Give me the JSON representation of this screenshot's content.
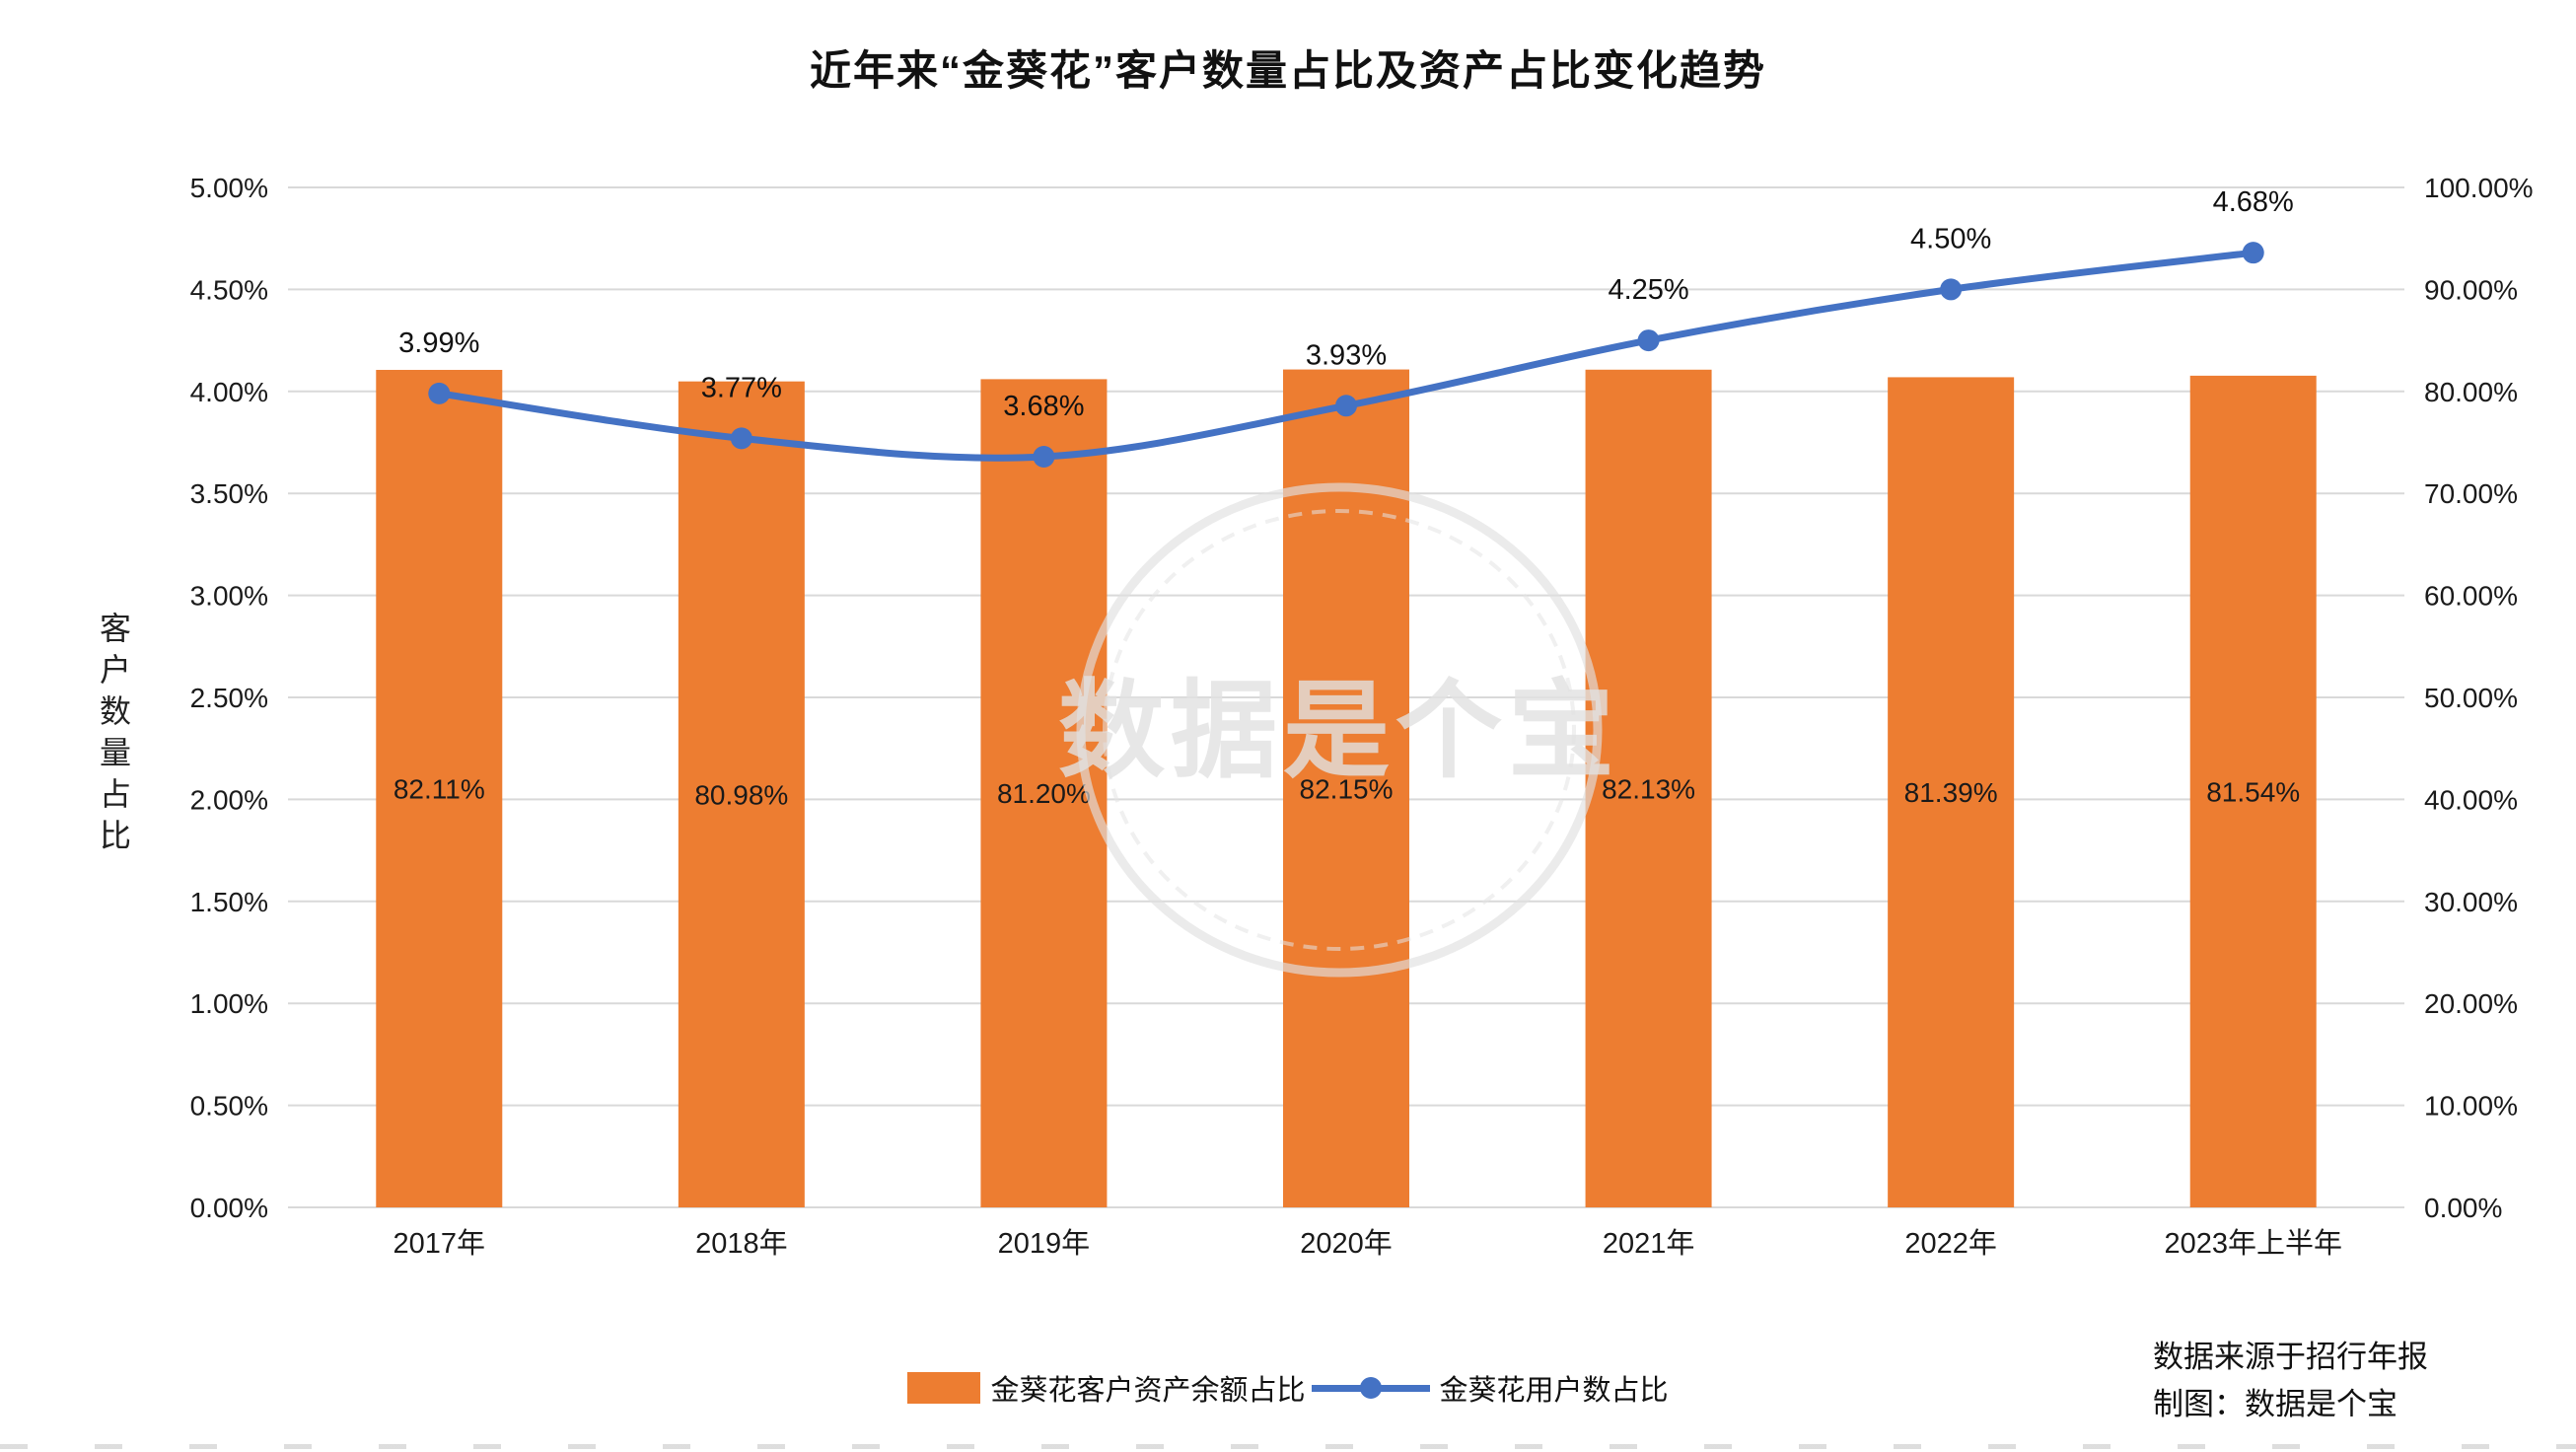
{
  "chart_data": {
    "type": "bar+line",
    "title": "近年来“金葵花”客户数量占比及资产占比变化趋势",
    "categories": [
      "2017年",
      "2018年",
      "2019年",
      "2020年",
      "2021年",
      "2022年",
      "2023年上半年"
    ],
    "series": [
      {
        "name": "金葵花客户资产余额占比",
        "type": "bar",
        "axis": "right",
        "color": "#ED7D31",
        "values": [
          82.11,
          80.98,
          81.2,
          82.15,
          82.13,
          81.39,
          81.54
        ],
        "labels": [
          "82.11%",
          "80.98%",
          "81.20%",
          "82.15%",
          "82.13%",
          "81.39%",
          "81.54%"
        ]
      },
      {
        "name": "金葵花用户数占比",
        "type": "line",
        "axis": "left",
        "color": "#4472C4",
        "values": [
          3.99,
          3.77,
          3.68,
          3.93,
          4.25,
          4.5,
          4.68
        ],
        "labels": [
          "3.99%",
          "3.77%",
          "3.68%",
          "3.93%",
          "4.25%",
          "4.50%",
          "4.68%"
        ]
      }
    ],
    "left_axis": {
      "title": "客户数量占比",
      "min": 0,
      "max": 5,
      "step": 0.5,
      "tick_labels": [
        "0.00%",
        "0.50%",
        "1.00%",
        "1.50%",
        "2.00%",
        "2.50%",
        "3.00%",
        "3.50%",
        "4.00%",
        "4.50%",
        "5.00%"
      ]
    },
    "right_axis": {
      "min": 0,
      "max": 100,
      "step": 10,
      "tick_labels": [
        "0.00%",
        "10.00%",
        "20.00%",
        "30.00%",
        "40.00%",
        "50.00%",
        "60.00%",
        "70.00%",
        "80.00%",
        "90.00%",
        "100.00%"
      ]
    },
    "grid": true,
    "gridline_color": "#d9d9d9",
    "legend_position": "bottom",
    "watermark": "数据是个宝",
    "source_line1": "数据来源于招行年报",
    "source_line2": "制图：数据是个宝"
  }
}
